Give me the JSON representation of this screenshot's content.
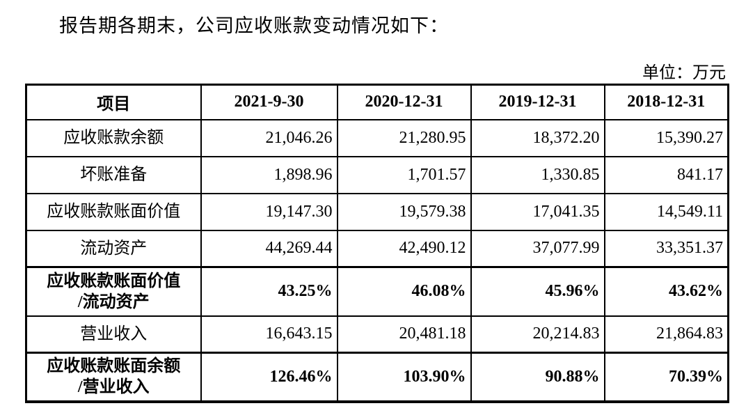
{
  "page": {
    "title": "报告期各期末，公司应收账款变动情况如下：",
    "unit_note": "单位：万元"
  },
  "table": {
    "columns": [
      "项目",
      "2021-9-30",
      "2020-12-31",
      "2019-12-31",
      "2018-12-31"
    ],
    "rows": [
      {
        "label_lines": [
          "应收账款余额"
        ],
        "bold": false,
        "values": [
          "21,046.26",
          "21,280.95",
          "18,372.20",
          "15,390.27"
        ]
      },
      {
        "label_lines": [
          "坏账准备"
        ],
        "bold": false,
        "values": [
          "1,898.96",
          "1,701.57",
          "1,330.85",
          "841.17"
        ]
      },
      {
        "label_lines": [
          "应收账款账面价值"
        ],
        "bold": false,
        "values": [
          "19,147.30",
          "19,579.38",
          "17,041.35",
          "14,549.11"
        ]
      },
      {
        "label_lines": [
          "流动资产"
        ],
        "bold": false,
        "values": [
          "44,269.44",
          "42,490.12",
          "37,077.99",
          "33,351.37"
        ]
      },
      {
        "label_lines": [
          "应收账款账面价值",
          "/流动资产"
        ],
        "bold": true,
        "values": [
          "43.25%",
          "46.08%",
          "45.96%",
          "43.62%"
        ]
      },
      {
        "label_lines": [
          "营业收入"
        ],
        "bold": false,
        "values": [
          "16,643.15",
          "20,481.18",
          "20,214.83",
          "21,864.83"
        ]
      },
      {
        "label_lines": [
          "应收账款账面余额",
          "/营业收入"
        ],
        "bold": true,
        "values": [
          "126.46%",
          "103.90%",
          "90.88%",
          "70.39%"
        ]
      }
    ]
  },
  "colors": {
    "background": "#ffffff",
    "text": "#000000",
    "border": "#000000"
  }
}
